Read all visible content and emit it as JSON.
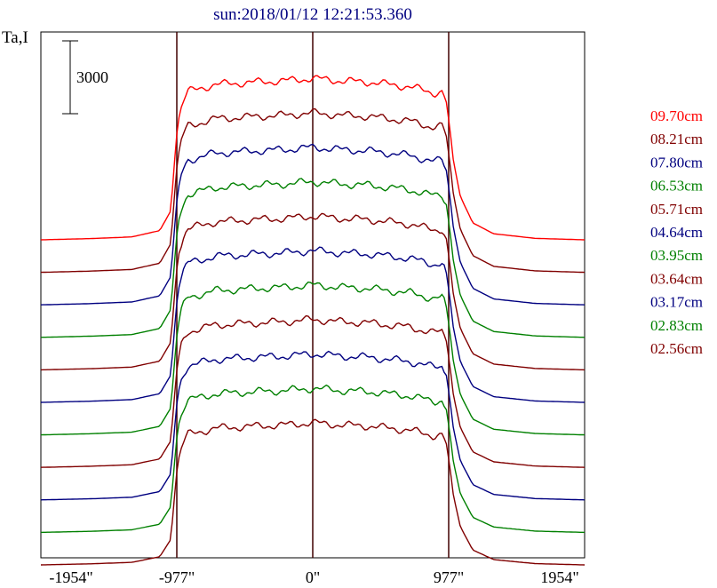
{
  "title": "sun:2018/01/12 12:21:53.360",
  "ylabel": "Ta,I",
  "scale_bar_label": "3000",
  "chart_data": {
    "type": "line",
    "title": "sun:2018/01/12 12:21:53.360",
    "xlabel": "",
    "ylabel": "Ta,I",
    "x_ticks": [
      "-1954\"",
      "-977\"",
      "0\"",
      "977\"",
      "1954\""
    ],
    "x_tick_values": [
      -1954,
      -977,
      0,
      977,
      1954
    ],
    "xlim": [
      -1954,
      1954
    ],
    "scale_bar": {
      "label": "3000",
      "value": 3000
    },
    "vertical_lines": [
      -977,
      0,
      977
    ],
    "series": [
      {
        "name": "09.70cm",
        "color": "#ff0000"
      },
      {
        "name": "08.21cm",
        "color": "#800000"
      },
      {
        "name": "07.80cm",
        "color": "#000080"
      },
      {
        "name": "06.53cm",
        "color": "#008000"
      },
      {
        "name": "05.71cm",
        "color": "#800000"
      },
      {
        "name": "04.64cm",
        "color": "#000080"
      },
      {
        "name": "03.95cm",
        "color": "#008000"
      },
      {
        "name": "03.64cm",
        "color": "#800000"
      },
      {
        "name": "03.17cm",
        "color": "#000080"
      },
      {
        "name": "02.83cm",
        "color": "#008000"
      },
      {
        "name": "02.56cm",
        "color": "#800000"
      }
    ],
    "profile_x": [
      -1954,
      -1600,
      -1300,
      -1100,
      -1020,
      -990,
      -970,
      -940,
      -900,
      -700,
      -400,
      -200,
      0,
      200,
      400,
      700,
      870,
      930,
      960,
      985,
      1010,
      1060,
      1150,
      1300,
      1600,
      1954
    ],
    "profile_y": [
      0,
      50,
      120,
      380,
      1200,
      3500,
      4800,
      5600,
      6100,
      6400,
      6500,
      6550,
      6650,
      6550,
      6500,
      6300,
      6050,
      6100,
      5700,
      4600,
      3300,
      1800,
      700,
      250,
      60,
      0
    ],
    "legend_position": "right",
    "grid": false
  }
}
